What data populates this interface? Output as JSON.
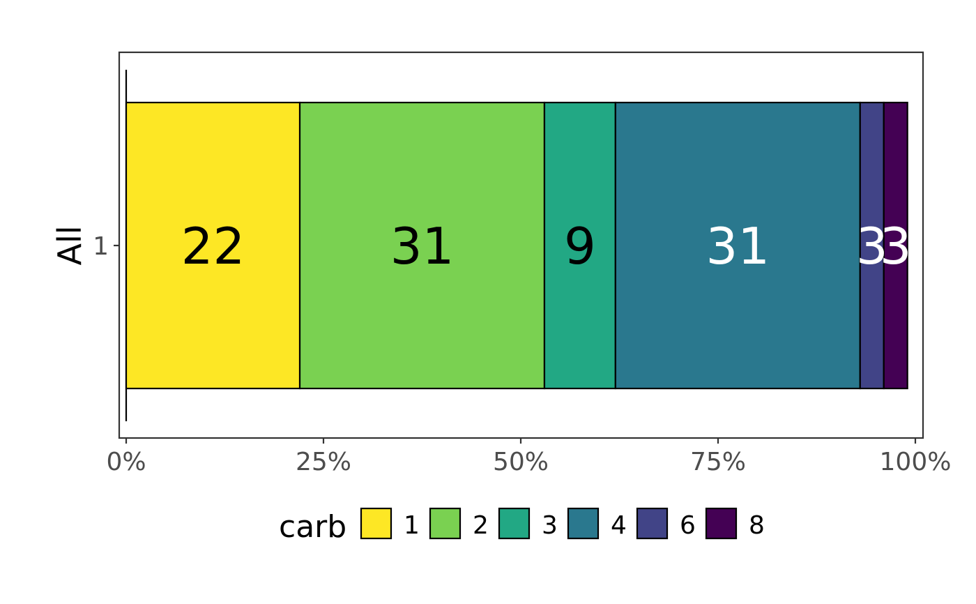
{
  "chart_data": {
    "type": "bar",
    "orientation": "horizontal",
    "stacked": true,
    "percent_scale": true,
    "categories": [
      "1"
    ],
    "ylabel": "All",
    "xlabel": "",
    "xlim": [
      0,
      100
    ],
    "x_ticks": [
      0,
      25,
      50,
      75,
      100
    ],
    "x_tick_labels": [
      "0%",
      "25%",
      "50%",
      "75%",
      "100%"
    ],
    "series": [
      {
        "name": "1",
        "values": [
          22
        ],
        "label": "22",
        "color": "#FDE725",
        "label_color": "#000000"
      },
      {
        "name": "2",
        "values": [
          31
        ],
        "label": "31",
        "color": "#7AD151",
        "label_color": "#000000"
      },
      {
        "name": "3",
        "values": [
          9
        ],
        "label": "9",
        "color": "#22A884",
        "label_color": "#000000"
      },
      {
        "name": "4",
        "values": [
          31
        ],
        "label": "31",
        "color": "#2A788E",
        "label_color": "#FFFFFF"
      },
      {
        "name": "6",
        "values": [
          3
        ],
        "label": "3",
        "color": "#414487",
        "label_color": "#FFFFFF"
      },
      {
        "name": "8",
        "values": [
          3
        ],
        "label": "3",
        "color": "#440154",
        "label_color": "#FFFFFF"
      }
    ],
    "legend": {
      "title": "carb",
      "position": "bottom"
    },
    "grid": false
  }
}
